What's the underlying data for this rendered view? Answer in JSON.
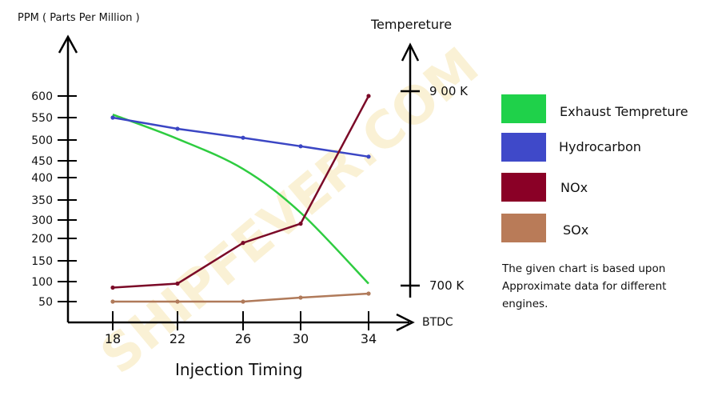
{
  "watermark": "SHIPFEVER.COM",
  "chart_data": {
    "type": "line",
    "left_axis": {
      "title": "PPM ( Parts Per Million )",
      "ticks": [
        {
          "label": "50",
          "value": 50
        },
        {
          "label": "100",
          "value": 100
        },
        {
          "label": "150",
          "value": 150
        },
        {
          "label": "200",
          "value": 200
        },
        {
          "label": "300",
          "value": 300
        },
        {
          "label": "350",
          "value": 350
        },
        {
          "label": "400",
          "value": 400
        },
        {
          "label": "450",
          "value": 450
        },
        {
          "label": "500",
          "value": 500
        },
        {
          "label": "550",
          "value": 550
        },
        {
          "label": "600",
          "value": 600
        }
      ]
    },
    "right_axis": {
      "title": "Tempereture",
      "ticks": [
        {
          "label": "9 00 K",
          "value": 900
        },
        {
          "label": "700 K",
          "value": 700
        }
      ]
    },
    "x_axis": {
      "title": "Injection Timing",
      "unit_label": "BTDC",
      "categories": [
        "18",
        "22",
        "26",
        "30",
        "34"
      ]
    },
    "series": [
      {
        "name": "Exhaust Tempreture",
        "axis": "right",
        "color": "#2ecc40",
        "smooth": true,
        "x": [
          "18",
          "22",
          "26",
          "30",
          "34"
        ],
        "values": [
          876,
          851,
          820,
          775,
          702
        ]
      },
      {
        "name": "Hydrocarbon",
        "axis": "left",
        "color": "#3b46c4",
        "x": [
          "18",
          "22",
          "26",
          "30",
          "34"
        ],
        "values": [
          550,
          525,
          505,
          485,
          460
        ]
      },
      {
        "name": "NOx",
        "axis": "left",
        "color": "#7b0a28",
        "x": [
          "18",
          "22",
          "26",
          "30",
          "34"
        ],
        "values": [
          85,
          95,
          190,
          280,
          600
        ]
      },
      {
        "name": "SOx",
        "axis": "left",
        "color": "#b07a5a",
        "x": [
          "18",
          "22",
          "26",
          "30",
          "34"
        ],
        "values": [
          50,
          50,
          50,
          60,
          70
        ]
      }
    ],
    "legend": {
      "placement": "right"
    }
  },
  "legend_items": [
    {
      "label": "Exhaust Tempreture",
      "color": "#1fd14a"
    },
    {
      "label": "Hydrocarbon",
      "color": "#3f49c9"
    },
    {
      "label": "NOx",
      "color": "#8a0026"
    },
    {
      "label": "SOx",
      "color": "#b97b58"
    }
  ],
  "note": [
    "The given chart is based upon",
    "Approximate data for different",
    "engines."
  ]
}
